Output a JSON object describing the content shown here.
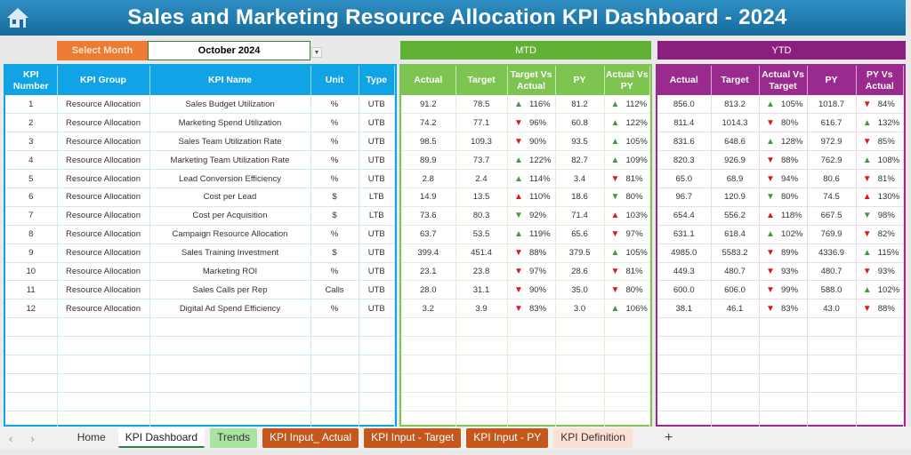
{
  "title": "Sales and Marketing Resource Allocation KPI Dashboard - 2024",
  "select_month": {
    "label": "Select Month",
    "value": "October 2024"
  },
  "bands": {
    "mtd": "MTD",
    "ytd": "YTD"
  },
  "colors": {
    "left": "#10a3e6",
    "mtd": "#7dc451",
    "ytd": "#9a2a8d",
    "up": "#3e9b3e",
    "down": "#e0161b"
  },
  "left_headers": [
    "KPI Number",
    "KPI Group",
    "KPI Name",
    "Unit",
    "Type"
  ],
  "mtd_headers": [
    "Actual",
    "Target",
    "Target Vs Actual",
    "PY",
    "Actual Vs PY"
  ],
  "ytd_headers": [
    "Actual",
    "Target",
    "Actual Vs Target",
    "PY",
    "PY Vs Actual"
  ],
  "rows": [
    {
      "num": "1",
      "group": "Resource Allocation",
      "name": "Sales Budget Utilization",
      "unit": "%",
      "type": "UTB",
      "mtd": [
        "91.2",
        "78.5",
        [
          "up-green",
          "116%"
        ],
        "81.2",
        [
          "up-green",
          "112%"
        ]
      ],
      "ytd": [
        "856.0",
        "813.2",
        [
          "up-green",
          "105%"
        ],
        "1018.7",
        [
          "down-red",
          "84%"
        ]
      ]
    },
    {
      "num": "2",
      "group": "Resource Allocation",
      "name": "Marketing Spend Utilization",
      "unit": "%",
      "type": "UTB",
      "mtd": [
        "74.2",
        "77.1",
        [
          "down-red",
          "96%"
        ],
        "60.8",
        [
          "up-green",
          "122%"
        ]
      ],
      "ytd": [
        "811.4",
        "1014.3",
        [
          "down-red",
          "80%"
        ],
        "616.7",
        [
          "up-green",
          "132%"
        ]
      ]
    },
    {
      "num": "3",
      "group": "Resource Allocation",
      "name": "Sales Team Utilization Rate",
      "unit": "%",
      "type": "UTB",
      "mtd": [
        "98.5",
        "109.3",
        [
          "down-red",
          "90%"
        ],
        "93.5",
        [
          "up-green",
          "105%"
        ]
      ],
      "ytd": [
        "831.6",
        "648.6",
        [
          "up-green",
          "128%"
        ],
        "972.9",
        [
          "down-red",
          "85%"
        ]
      ]
    },
    {
      "num": "4",
      "group": "Resource Allocation",
      "name": "Marketing Team Utilization Rate",
      "unit": "%",
      "type": "UTB",
      "mtd": [
        "89.9",
        "73.7",
        [
          "up-green",
          "122%"
        ],
        "82.7",
        [
          "up-green",
          "109%"
        ]
      ],
      "ytd": [
        "820.3",
        "926.9",
        [
          "down-red",
          "88%"
        ],
        "762.9",
        [
          "up-green",
          "108%"
        ]
      ]
    },
    {
      "num": "5",
      "group": "Resource Allocation",
      "name": "Lead Conversion Efficiency",
      "unit": "%",
      "type": "UTB",
      "mtd": [
        "2.8",
        "2.4",
        [
          "up-green",
          "114%"
        ],
        "3.4",
        [
          "down-red",
          "81%"
        ]
      ],
      "ytd": [
        "65.0",
        "68.9",
        [
          "down-red",
          "94%"
        ],
        "80.6",
        [
          "down-red",
          "81%"
        ]
      ]
    },
    {
      "num": "6",
      "group": "Resource Allocation",
      "name": "Cost per Lead",
      "unit": "$",
      "type": "LTB",
      "mtd": [
        "14.9",
        "13.5",
        [
          "up-red",
          "110%"
        ],
        "18.6",
        [
          "down-green",
          "80%"
        ]
      ],
      "ytd": [
        "96.7",
        "120.9",
        [
          "down-green",
          "80%"
        ],
        "74.5",
        [
          "up-red",
          "130%"
        ]
      ]
    },
    {
      "num": "7",
      "group": "Resource Allocation",
      "name": "Cost per Acquisition",
      "unit": "$",
      "type": "LTB",
      "mtd": [
        "73.6",
        "80.3",
        [
          "down-green",
          "92%"
        ],
        "71.4",
        [
          "up-red",
          "103%"
        ]
      ],
      "ytd": [
        "654.4",
        "556.2",
        [
          "up-red",
          "118%"
        ],
        "667.5",
        [
          "down-green",
          "98%"
        ]
      ]
    },
    {
      "num": "8",
      "group": "Resource Allocation",
      "name": "Campaign Resource Allocation",
      "unit": "%",
      "type": "UTB",
      "mtd": [
        "63.7",
        "53.5",
        [
          "up-green",
          "119%"
        ],
        "65.6",
        [
          "down-red",
          "97%"
        ]
      ],
      "ytd": [
        "631.1",
        "618.4",
        [
          "up-green",
          "102%"
        ],
        "769.9",
        [
          "down-red",
          "82%"
        ]
      ]
    },
    {
      "num": "9",
      "group": "Resource Allocation",
      "name": "Sales Training Investment",
      "unit": "$",
      "type": "UTB",
      "mtd": [
        "399.4",
        "451.4",
        [
          "down-red",
          "88%"
        ],
        "379.5",
        [
          "up-green",
          "105%"
        ]
      ],
      "ytd": [
        "4985.0",
        "5583.2",
        [
          "down-red",
          "89%"
        ],
        "4336.9",
        [
          "up-green",
          "115%"
        ]
      ]
    },
    {
      "num": "10",
      "group": "Resource Allocation",
      "name": "Marketing ROI",
      "unit": "%",
      "type": "UTB",
      "mtd": [
        "23.1",
        "23.8",
        [
          "down-red",
          "97%"
        ],
        "28.6",
        [
          "down-red",
          "81%"
        ]
      ],
      "ytd": [
        "449.3",
        "480.7",
        [
          "down-red",
          "93%"
        ],
        "480.7",
        [
          "down-red",
          "93%"
        ]
      ]
    },
    {
      "num": "11",
      "group": "Resource Allocation",
      "name": "Sales Calls per Rep",
      "unit": "Calls",
      "type": "UTB",
      "mtd": [
        "28.0",
        "31.1",
        [
          "down-red",
          "90%"
        ],
        "35.0",
        [
          "down-red",
          "80%"
        ]
      ],
      "ytd": [
        "600.0",
        "606.0",
        [
          "down-red",
          "99%"
        ],
        "588.0",
        [
          "up-green",
          "102%"
        ]
      ]
    },
    {
      "num": "12",
      "group": "Resource Allocation",
      "name": "Digital Ad Spend Efficiency",
      "unit": "%",
      "type": "UTB",
      "mtd": [
        "3.2",
        "3.9",
        [
          "down-red",
          "83%"
        ],
        "3.0",
        [
          "up-green",
          "106%"
        ]
      ],
      "ytd": [
        "38.1",
        "46.1",
        [
          "down-red",
          "83%"
        ],
        "43.0",
        [
          "down-red",
          "88%"
        ]
      ]
    }
  ],
  "tabs": [
    {
      "label": "Home",
      "bg": "transparent",
      "fg": "#333"
    },
    {
      "label": "KPI Dashboard",
      "bg": "#fff",
      "fg": "#222",
      "active": true
    },
    {
      "label": "Trends",
      "bg": "#a9e3a0",
      "fg": "#333"
    },
    {
      "label": "KPI Input_ Actual",
      "bg": "#c5561c",
      "fg": "#fff"
    },
    {
      "label": "KPI Input - Target",
      "bg": "#c5561c",
      "fg": "#fff"
    },
    {
      "label": "KPI Input - PY",
      "bg": "#c5561c",
      "fg": "#fff"
    },
    {
      "label": "KPI Definition",
      "bg": "#fbe0d3",
      "fg": "#333"
    }
  ],
  "add_sheet": "+"
}
